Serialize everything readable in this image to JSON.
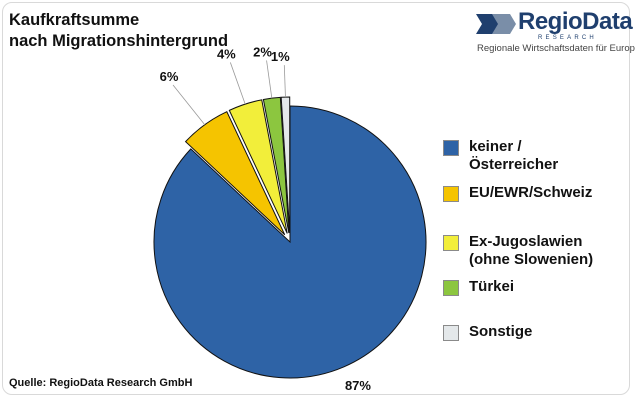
{
  "chart_data": {
    "type": "pie",
    "title_lines": [
      "Kaufkraftsumme",
      "nach Migrationshintergrund"
    ],
    "slices": [
      {
        "label_lines": [
          "keiner /",
          "Österreicher"
        ],
        "value": 87,
        "value_label": "87%",
        "color": "#2e63a6",
        "exploded": false
      },
      {
        "label_lines": [
          "EU/EWR/Schweiz"
        ],
        "value": 6,
        "value_label": "6%",
        "color": "#f5c400",
        "exploded": true
      },
      {
        "label_lines": [
          "Ex-Jugoslawien",
          "(ohne Slowenien)"
        ],
        "value": 4,
        "value_label": "4%",
        "color": "#f2ee3a",
        "exploded": true
      },
      {
        "label_lines": [
          "Türkei"
        ],
        "value": 2,
        "value_label": "2%",
        "color": "#8cc63f",
        "exploded": true
      },
      {
        "label_lines": [
          "Sonstige"
        ],
        "value": 1,
        "value_label": "1%",
        "color": "#e4e8ea",
        "exploded": true
      }
    ],
    "legend_position": "right",
    "source": "Quelle: RegioData Research GmbH"
  },
  "logo": {
    "name": "RegioData",
    "sub": "RESEARCH",
    "tagline": "Regionale Wirtschaftsdaten für Europa",
    "colors": {
      "primary": "#1f3f6e",
      "secondary": "#7a8ea8"
    }
  }
}
